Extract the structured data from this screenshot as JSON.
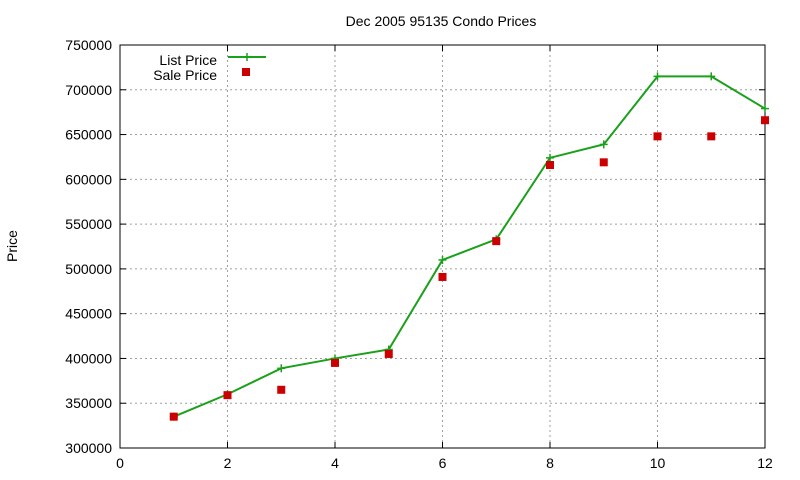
{
  "chart_data": {
    "type": "line",
    "title": "Dec 2005 95135 Condo Prices",
    "xlabel": "",
    "ylabel": "Price",
    "xlim": [
      0,
      12
    ],
    "ylim": [
      300000,
      750000
    ],
    "xticks": [
      0,
      2,
      4,
      6,
      8,
      10,
      12
    ],
    "yticks": [
      300000,
      350000,
      400000,
      450000,
      500000,
      550000,
      600000,
      650000,
      700000,
      750000
    ],
    "grid": true,
    "legend_position": "top-left",
    "series": [
      {
        "name": "List Price",
        "style": "line-plus",
        "color": "#1aa01a",
        "x": [
          1,
          2,
          3,
          4,
          5,
          6,
          7,
          8,
          9,
          10,
          11,
          12
        ],
        "y": [
          335000,
          360000,
          389000,
          400000,
          410000,
          510000,
          533000,
          624000,
          639000,
          715000,
          715000,
          679000
        ]
      },
      {
        "name": "Sale Price",
        "style": "square",
        "color": "#cc0000",
        "x": [
          1,
          2,
          3,
          4,
          5,
          6,
          7,
          8,
          9,
          10,
          11,
          12
        ],
        "y": [
          335000,
          359000,
          365000,
          395000,
          405000,
          491000,
          531000,
          616000,
          619000,
          648000,
          648000,
          666000
        ]
      }
    ]
  }
}
